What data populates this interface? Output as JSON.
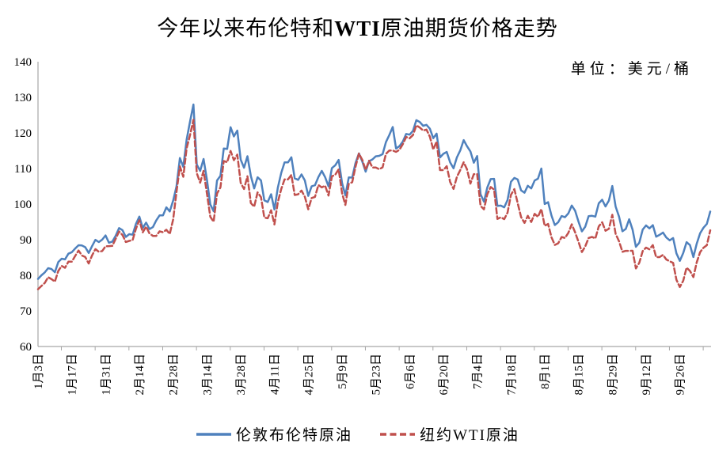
{
  "title": {
    "prefix": "今年以来布伦特和",
    "highlight": "WTI",
    "suffix": "原油期货价格走势"
  },
  "unit_label": "单位：美元/桶",
  "colors": {
    "axis": "#a6a6a6",
    "brent": "#4F81BD",
    "wti": "#C0504D"
  },
  "legend": [
    {
      "label": "伦敦布伦特原油",
      "color": "#4F81BD",
      "style": "solid"
    },
    {
      "label": "纽约WTI原油",
      "color": "#C0504D",
      "style": "dashed"
    }
  ],
  "chart_data": {
    "type": "line",
    "title": "今年以来布伦特和WTI原油期货价格走势",
    "unit": "单位：美元/桶",
    "xlabel": "",
    "ylabel": "",
    "ylim": [
      60,
      140
    ],
    "ytick_step": 10,
    "grid": false,
    "legend_position": "bottom",
    "x_tick_every": 10,
    "x_tick_labels": [
      "1月3日",
      "1月17日",
      "1月31日",
      "2月14日",
      "2月28日",
      "3月14日",
      "3月28日",
      "4月11日",
      "4月25日",
      "5月9日",
      "5月23日",
      "6月6日",
      "6月20日",
      "7月4日",
      "7月18日",
      "8月1日",
      "8月15日",
      "8月29日",
      "9月12日",
      "9月26日"
    ],
    "series": [
      {
        "name": "伦敦布伦特原油",
        "color": "#4F81BD",
        "dash": "solid",
        "values": [
          78.98,
          80.0,
          80.8,
          81.99,
          81.75,
          80.87,
          83.72,
          84.67,
          84.47,
          86.06,
          86.48,
          87.51,
          88.44,
          88.38,
          87.89,
          86.27,
          88.2,
          89.96,
          89.34,
          90.03,
          91.21,
          89.16,
          89.47,
          91.11,
          93.27,
          92.69,
          90.78,
          91.55,
          91.41,
          94.44,
          96.48,
          93.28,
          94.81,
          92.97,
          93.54,
          95.39,
          96.84,
          96.84,
          99.08,
          97.93,
          100.99,
          104.97,
          112.93,
          110.46,
          118.11,
          123.21,
          127.98,
          111.14,
          109.33,
          112.67,
          106.9,
          99.91,
          98.02,
          106.64,
          107.93,
          115.62,
          115.48,
          121.6,
          119.03,
          120.65,
          112.48,
          110.23,
          113.45,
          107.91,
          104.39,
          107.53,
          106.64,
          101.07,
          100.58,
          102.78,
          98.48,
          104.64,
          108.78,
          111.7,
          111.7,
          113.16,
          107.25,
          106.8,
          108.33,
          106.65,
          102.32,
          104.99,
          105.32,
          107.59,
          109.34,
          107.58,
          104.97,
          110.14,
          110.9,
          112.39,
          105.94,
          102.46,
          107.51,
          107.45,
          111.55,
          114.24,
          111.93,
          109.11,
          112.04,
          112.55,
          113.42,
          113.56,
          114.03,
          117.4,
          119.43,
          121.67,
          115.6,
          116.29,
          117.61,
          119.72,
          119.51,
          120.57,
          123.58,
          123.07,
          122.01,
          122.27,
          121.17,
          118.51,
          119.81,
          113.12,
          114.13,
          114.65,
          111.74,
          110.05,
          113.12,
          115.09,
          117.98,
          116.26,
          114.81,
          111.63,
          113.5,
          102.77,
          100.69,
          104.65,
          107.02,
          107.1,
          99.49,
          99.57,
          99.1,
          101.16,
          106.27,
          107.35,
          106.92,
          103.86,
          103.2,
          105.15,
          104.4,
          106.62,
          107.14,
          110.01,
          100.03,
          100.54,
          96.78,
          94.12,
          94.92,
          96.65,
          96.31,
          97.4,
          99.6,
          98.15,
          95.1,
          92.34,
          93.65,
          96.59,
          96.72,
          96.48,
          100.22,
          101.22,
          99.34,
          100.99,
          105.09,
          99.31,
          96.49,
          92.36,
          93.02,
          95.74,
          92.83,
          88.0,
          89.15,
          92.84,
          94.0,
          93.17,
          94.1,
          90.84,
          91.35,
          92.0,
          90.62,
          89.83,
          90.46,
          86.15,
          84.06,
          86.27,
          89.32,
          88.49,
          85.14,
          88.86,
          91.8,
          93.37,
          94.42,
          97.92
        ]
      },
      {
        "name": "纽约WTI原油",
        "color": "#C0504D",
        "dash": "dashed",
        "values": [
          76.08,
          76.99,
          77.85,
          79.46,
          78.9,
          78.23,
          81.22,
          82.64,
          82.12,
          83.82,
          83.82,
          85.43,
          86.96,
          85.55,
          85.14,
          83.31,
          85.6,
          87.35,
          86.61,
          86.82,
          88.15,
          88.2,
          88.26,
          90.27,
          92.31,
          91.32,
          89.36,
          89.66,
          89.88,
          93.1,
          95.46,
          92.07,
          93.66,
          91.76,
          91.07,
          91.07,
          92.35,
          92.1,
          92.81,
          91.59,
          95.72,
          103.41,
          110.6,
          107.67,
          115.68,
          119.4,
          123.7,
          108.7,
          106.02,
          109.33,
          103.01,
          96.44,
          95.04,
          102.98,
          104.7,
          112.12,
          111.76,
          114.93,
          112.34,
          113.9,
          105.96,
          104.24,
          107.82,
          100.28,
          99.27,
          103.28,
          101.96,
          96.23,
          96.03,
          98.26,
          94.29,
          100.6,
          104.25,
          106.95,
          106.95,
          108.21,
          102.56,
          102.75,
          103.79,
          102.07,
          98.54,
          101.7,
          102.02,
          105.36,
          104.69,
          105.17,
          102.41,
          107.81,
          108.26,
          109.77,
          103.09,
          99.76,
          105.71,
          106.13,
          110.49,
          114.2,
          112.4,
          109.59,
          112.21,
          110.28,
          110.29,
          109.77,
          110.33,
          114.09,
          115.07,
          115.07,
          114.67,
          115.26,
          116.87,
          118.87,
          118.5,
          119.41,
          122.11,
          121.51,
          120.67,
          120.93,
          118.93,
          115.31,
          117.59,
          109.56,
          109.56,
          110.65,
          106.19,
          104.27,
          107.62,
          109.57,
          111.76,
          109.78,
          105.76,
          108.43,
          108.43,
          99.5,
          98.53,
          102.73,
          104.79,
          104.09,
          95.84,
          96.3,
          95.78,
          97.59,
          102.6,
          104.22,
          100.26,
          96.35,
          94.7,
          96.7,
          94.98,
          97.26,
          96.42,
          98.62,
          93.89,
          94.42,
          90.66,
          88.54,
          89.01,
          90.76,
          90.5,
          91.93,
          94.34,
          92.09,
          89.41,
          86.53,
          88.11,
          90.5,
          90.77,
          90.36,
          93.74,
          94.89,
          92.52,
          93.06,
          97.01,
          91.64,
          89.55,
          86.61,
          86.87,
          86.87,
          86.88,
          81.94,
          83.54,
          86.79,
          87.78,
          87.31,
          88.48,
          85.1,
          85.11,
          85.73,
          84.45,
          83.94,
          83.49,
          78.74,
          76.71,
          78.5,
          82.15,
          81.23,
          79.49,
          83.63,
          86.52,
          87.76,
          88.45,
          92.64
        ]
      }
    ]
  }
}
